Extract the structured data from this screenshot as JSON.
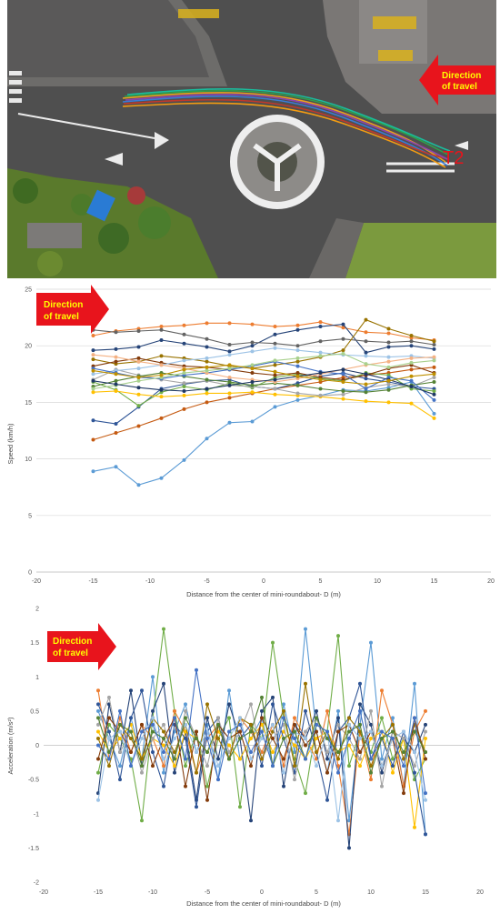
{
  "photo": {
    "direction_label_line1": "Direction",
    "direction_label_line2": "of travel",
    "trajectory_label": "T2",
    "colors": {
      "asphalt": "#4a4a4a",
      "grass": "#6f8f3a",
      "arrow": "#e8141c",
      "arrow_text": "#ffff00",
      "label": "#e8141c"
    }
  },
  "chart_data": [
    {
      "type": "line",
      "ylabel": "Speed (km/h)",
      "xlabel": "Distance from the center of mini-roundabout- D (m)",
      "direction_label_line1": "Direction",
      "direction_label_line2": "of travel",
      "xlim": [
        -20,
        20
      ],
      "ylim": [
        0,
        25
      ],
      "xticks": [
        -20,
        -15,
        -10,
        -5,
        0,
        5,
        10,
        15,
        20
      ],
      "yticks": [
        0,
        5,
        10,
        15,
        20,
        25
      ],
      "grid": true,
      "x": [
        -15,
        -13,
        -11,
        -9,
        -7,
        -5,
        -3,
        -1,
        1,
        3,
        5,
        7,
        9,
        11,
        13,
        15
      ],
      "series": [
        {
          "color": "#5b9bd5",
          "values": [
            8.9,
            9.3,
            7.7,
            8.3,
            9.9,
            11.8,
            13.2,
            13.3,
            14.6,
            15.2,
            15.6,
            16.1,
            16.0,
            16.3,
            16.8,
            14.0
          ]
        },
        {
          "color": "#c55a11",
          "values": [
            11.7,
            12.3,
            12.9,
            13.6,
            14.4,
            15.0,
            15.4,
            15.8,
            16.2,
            16.5,
            16.8,
            17.2,
            17.4,
            17.6,
            17.9,
            18.1
          ]
        },
        {
          "color": "#2f5597",
          "values": [
            13.4,
            13.1,
            14.6,
            16.2,
            16.6,
            16.9,
            17.0,
            16.4,
            16.2,
            16.7,
            17.3,
            17.6,
            17.1,
            16.8,
            16.4,
            16.2
          ]
        },
        {
          "color": "#70ad47",
          "values": [
            16.8,
            16.1,
            14.7,
            15.9,
            16.4,
            16.1,
            16.7,
            16.3,
            17.2,
            17.5,
            17.1,
            16.9,
            17.6,
            17.4,
            16.2,
            16.0
          ]
        },
        {
          "color": "#ffc000",
          "values": [
            15.9,
            16.0,
            15.7,
            15.5,
            15.6,
            15.8,
            15.8,
            15.9,
            15.7,
            15.6,
            15.5,
            15.3,
            15.1,
            15.0,
            14.9,
            13.6
          ]
        },
        {
          "color": "#a5a5a5",
          "values": [
            17.0,
            17.9,
            17.4,
            17.0,
            16.7,
            16.9,
            16.5,
            16.4,
            16.2,
            15.8,
            15.6,
            15.7,
            16.3,
            16.6,
            16.4,
            17.2
          ]
        },
        {
          "color": "#ed7d31",
          "values": [
            20.9,
            21.3,
            21.5,
            21.7,
            21.8,
            22.0,
            22.0,
            21.9,
            21.7,
            21.8,
            22.1,
            21.6,
            21.2,
            21.1,
            20.7,
            20.5
          ]
        },
        {
          "color": "#264478",
          "values": [
            19.6,
            19.7,
            19.9,
            20.5,
            20.2,
            19.9,
            19.5,
            20.0,
            21.0,
            21.4,
            21.7,
            21.9,
            19.4,
            19.9,
            20.0,
            19.7
          ]
        },
        {
          "color": "#636363",
          "values": [
            21.4,
            21.2,
            21.3,
            21.4,
            21.0,
            20.6,
            20.1,
            20.3,
            20.2,
            20.0,
            20.4,
            20.6,
            20.4,
            20.3,
            20.4,
            20.1
          ]
        },
        {
          "color": "#997300",
          "values": [
            18.8,
            18.4,
            18.6,
            19.1,
            18.9,
            18.6,
            18.2,
            18.0,
            18.3,
            18.6,
            19.0,
            19.6,
            22.3,
            21.5,
            20.9,
            20.4
          ]
        },
        {
          "color": "#843c0c",
          "values": [
            18.2,
            18.6,
            18.9,
            18.5,
            18.2,
            18.1,
            17.9,
            17.6,
            17.4,
            17.6,
            17.2,
            17.0,
            17.4,
            18.0,
            18.3,
            17.6
          ]
        },
        {
          "color": "#9dc3e6",
          "values": [
            17.5,
            17.8,
            18.0,
            18.3,
            18.7,
            18.9,
            19.2,
            19.5,
            19.8,
            19.6,
            19.4,
            19.2,
            19.1,
            19.0,
            19.1,
            18.9
          ]
        },
        {
          "color": "#548235",
          "values": [
            16.4,
            16.9,
            17.3,
            17.6,
            17.3,
            17.0,
            16.8,
            16.5,
            16.7,
            16.5,
            16.2,
            16.0,
            15.9,
            16.1,
            16.5,
            16.8
          ]
        },
        {
          "color": "#4472c4",
          "values": [
            18.0,
            17.6,
            17.2,
            17.1,
            17.4,
            17.6,
            17.9,
            18.2,
            18.6,
            18.2,
            17.7,
            17.5,
            16.2,
            17.2,
            16.9,
            15.2
          ]
        },
        {
          "color": "#f4b183",
          "values": [
            19.2,
            19.0,
            18.6,
            18.3,
            18.0,
            17.6,
            17.2,
            17.0,
            16.8,
            17.1,
            17.5,
            17.9,
            18.3,
            18.6,
            18.9,
            19.0
          ]
        },
        {
          "color": "#a9d18e",
          "values": [
            16.2,
            16.5,
            16.9,
            17.2,
            17.6,
            17.8,
            18.0,
            18.3,
            18.7,
            18.9,
            19.1,
            19.3,
            18.4,
            18.1,
            18.5,
            18.7
          ]
        },
        {
          "color": "#1f3864",
          "values": [
            16.9,
            16.6,
            16.3,
            16.1,
            16.0,
            16.2,
            16.5,
            16.8,
            17.0,
            17.3,
            17.6,
            17.9,
            17.5,
            17.0,
            16.4,
            15.7
          ]
        },
        {
          "color": "#bf9000",
          "values": [
            17.8,
            17.5,
            17.2,
            17.4,
            17.9,
            18.1,
            18.3,
            18.0,
            17.7,
            17.3,
            17.0,
            16.8,
            16.6,
            16.9,
            17.3,
            17.5
          ]
        }
      ]
    },
    {
      "type": "line",
      "ylabel": "Acceleration (m/s²)",
      "xlabel": "Distance from the center of mini-roundabout- D (m)",
      "direction_label_line1": "Direction",
      "direction_label_line2": "of travel",
      "xlim": [
        -20,
        20
      ],
      "ylim": [
        -2,
        2
      ],
      "xticks": [
        -20,
        -15,
        -10,
        -5,
        0,
        5,
        10,
        15,
        20
      ],
      "yticks": [
        -2,
        -1.5,
        -1,
        -0.5,
        0,
        0.5,
        1,
        1.5,
        2
      ],
      "grid": false,
      "x": [
        -15,
        -14,
        -13,
        -12,
        -11,
        -10,
        -9,
        -8,
        -7,
        -6,
        -5,
        -4,
        -3,
        -2,
        -1,
        0,
        1,
        2,
        3,
        4,
        5,
        6,
        7,
        8,
        9,
        10,
        11,
        12,
        13,
        14,
        15
      ],
      "series": [
        {
          "color": "#5b9bd5",
          "values": [
            0.5,
            0.1,
            -0.3,
            0.4,
            -0.2,
            1.0,
            -0.4,
            0.2,
            0.6,
            -0.1,
            0.3,
            -0.5,
            0.8,
            -0.2,
            0.1,
            0.4,
            -0.3,
            0.6,
            -0.1,
            1.7,
            0.2,
            -0.4,
            0.5,
            -1.1,
            0.3,
            1.5,
            -0.2,
            0.4,
            -0.6,
            0.9,
            -1.3
          ]
        },
        {
          "color": "#70ad47",
          "values": [
            -0.4,
            0.3,
            0.1,
            -0.2,
            -1.1,
            0.4,
            1.7,
            0.5,
            -0.3,
            0.2,
            -0.6,
            0.1,
            0.4,
            -0.9,
            0.3,
            0.1,
            1.5,
            0.4,
            -0.2,
            -0.7,
            0.3,
            0.2,
            1.6,
            -0.3,
            0.2,
            -0.1,
            0.4,
            -0.2,
            0.1,
            -0.5,
            -0.2
          ]
        },
        {
          "color": "#ed7d31",
          "values": [
            0.8,
            -0.2,
            0.4,
            -0.1,
            0.3,
            0.1,
            -0.3,
            0.5,
            0.2,
            -0.4,
            0.1,
            0.3,
            -0.2,
            0.4,
            0.2,
            -0.1,
            0.3,
            -0.3,
            0.4,
            0.1,
            -0.2,
            0.5,
            -0.3,
            -1.3,
            0.2,
            -0.5,
            0.8,
            0.3,
            -0.6,
            0.2,
            0.5
          ]
        },
        {
          "color": "#264478",
          "values": [
            -0.7,
            0.6,
            -0.1,
            0.8,
            -0.3,
            0.5,
            0.9,
            -0.4,
            0.2,
            -0.8,
            0.4,
            -0.2,
            0.6,
            0.1,
            -1.1,
            0.5,
            0.7,
            -0.6,
            0.3,
            0.1,
            0.5,
            -0.2,
            0.4,
            -1.5,
            0.6,
            0.3,
            -0.4,
            0.2,
            0.1,
            -0.1,
            0.3
          ]
        },
        {
          "color": "#ffc000",
          "values": [
            0.2,
            -0.1,
            0.1,
            0.3,
            -0.2,
            0.1,
            0.0,
            -0.3,
            0.2,
            0.1,
            -0.1,
            0.2,
            0.0,
            -0.2,
            0.1,
            0.3,
            -0.1,
            0.2,
            0.0,
            -0.2,
            0.1,
            0.2,
            -0.1,
            0.0,
            -0.3,
            0.1,
            0.2,
            -0.4,
            0.1,
            -1.2,
            0.1
          ]
        },
        {
          "color": "#2f5597",
          "values": [
            0.6,
            0.2,
            -0.5,
            0.4,
            0.8,
            -0.1,
            -0.6,
            0.3,
            0.1,
            -0.9,
            0.2,
            0.4,
            -0.2,
            0.1,
            0.3,
            -0.3,
            0.6,
            0.1,
            -0.4,
            0.5,
            -0.1,
            -0.8,
            0.2,
            0.4,
            0.9,
            -0.2,
            0.1,
            -0.3,
            0.2,
            -0.4,
            -1.3
          ]
        },
        {
          "color": "#a5a5a5",
          "values": [
            0.3,
            0.7,
            -0.1,
            0.2,
            -0.4,
            0.1,
            0.3,
            -0.2,
            0.5,
            0.1,
            -0.3,
            0.4,
            -0.1,
            0.2,
            0.6,
            -0.2,
            0.1,
            0.3,
            -0.5,
            0.2,
            0.4,
            -0.1,
            0.3,
            0.1,
            -0.2,
            0.5,
            -0.6,
            0.2,
            0.1,
            -0.3,
            0.2
          ]
        },
        {
          "color": "#997300",
          "values": [
            0.1,
            -0.3,
            0.3,
            0.1,
            -0.2,
            0.4,
            0.2,
            -0.1,
            0.3,
            -0.4,
            0.6,
            0.1,
            -0.2,
            0.4,
            0.3,
            -0.2,
            0.2,
            0.5,
            -0.3,
            0.9,
            -0.1,
            0.2,
            -0.2,
            0.4,
            0.2,
            -0.3,
            0.1,
            0.3,
            -0.2,
            0.3,
            -0.1
          ]
        },
        {
          "color": "#843c0c",
          "values": [
            -0.2,
            0.4,
            0.2,
            -0.1,
            0.3,
            -0.3,
            0.1,
            0.4,
            -0.6,
            0.2,
            -0.8,
            0.3,
            0.1,
            0.2,
            -0.3,
            0.4,
            0.1,
            -0.2,
            0.3,
            0.0,
            0.2,
            -0.4,
            0.2,
            0.3,
            -0.1,
            0.2,
            -0.3,
            0.1,
            -0.7,
            0.4,
            -0.2
          ]
        },
        {
          "color": "#9dc3e6",
          "values": [
            -0.8,
            0.1,
            0.2,
            -0.3,
            0.1,
            0.4,
            -0.2,
            0.1,
            0.3,
            -0.1,
            0.2,
            -0.3,
            0.1,
            0.4,
            -0.2,
            0.1,
            0.3,
            -0.4,
            0.2,
            0.1,
            -0.3,
            0.2,
            -1.1,
            0.3,
            0.1,
            0.2,
            -0.3,
            0.1,
            0.2,
            -0.1,
            -0.8
          ]
        },
        {
          "color": "#548235",
          "values": [
            0.4,
            -0.1,
            0.3,
            0.2,
            -0.3,
            0.2,
            0.1,
            -0.2,
            0.4,
            0.1,
            -0.1,
            0.3,
            -0.2,
            0.1,
            0.2,
            0.7,
            -0.3,
            0.1,
            0.2,
            -0.2,
            0.4,
            0.1,
            -0.1,
            0.2,
            0.3,
            -0.4,
            0.1,
            0.2,
            -0.1,
            0.2,
            -0.1
          ]
        },
        {
          "color": "#4472c4",
          "values": [
            0.0,
            -0.2,
            0.5,
            -0.3,
            0.2,
            0.3,
            -0.1,
            0.4,
            -0.2,
            1.1,
            0.1,
            -0.5,
            0.2,
            0.3,
            -0.1,
            0.2,
            -0.3,
            0.4,
            0.1,
            -0.2,
            0.3,
            0.2,
            -0.4,
            0.1,
            0.5,
            -0.2,
            0.2,
            0.1,
            -0.3,
            0.4,
            -0.7
          ]
        }
      ]
    }
  ]
}
